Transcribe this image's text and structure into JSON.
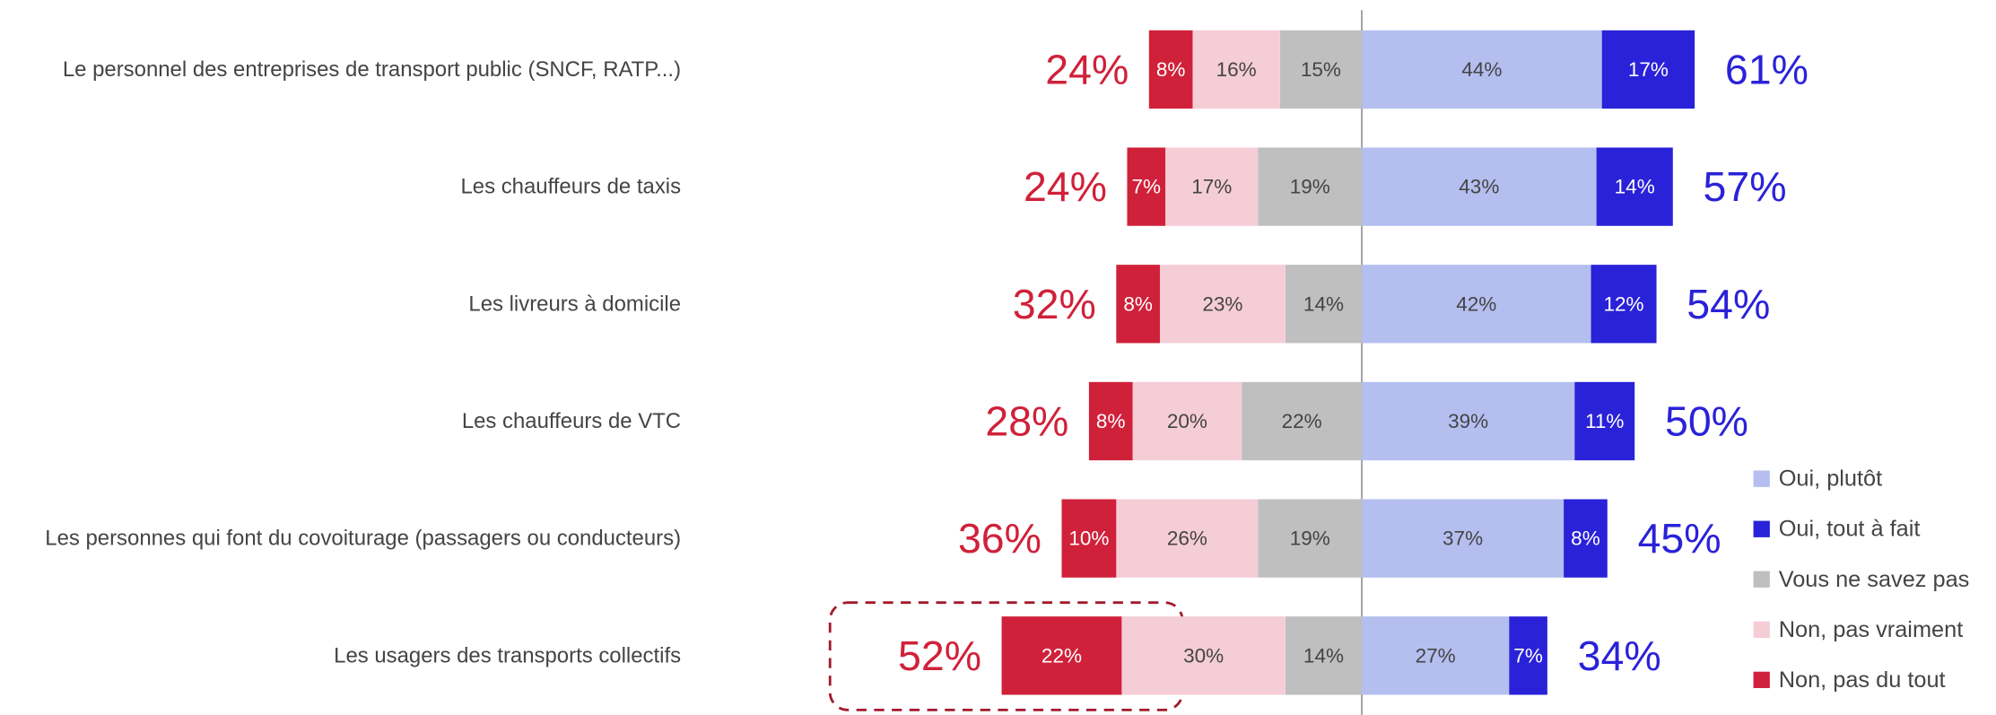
{
  "chart_data": {
    "type": "diverging-bar",
    "categories": [
      "Le personnel des entreprises de transport public (SNCF, RATP...)",
      "Les chauffeurs de taxis",
      "Les livreurs à domicile",
      "Les chauffeurs de VTC",
      "Les personnes qui font du covoiturage (passagers ou conducteurs)",
      "Les usagers des transports collectifs"
    ],
    "series": [
      {
        "name": "Oui, plutôt",
        "color": "#b4bff0",
        "side": "right",
        "values": [
          44,
          43,
          42,
          39,
          37,
          27
        ],
        "value_labels": [
          "44%",
          "43%",
          "42%",
          "39%",
          "37%",
          "27%"
        ]
      },
      {
        "name": "Oui, tout à fait",
        "color": "#2a22d8",
        "side": "right",
        "values": [
          17,
          14,
          12,
          11,
          8,
          7
        ],
        "value_labels": [
          "17%",
          "14%",
          "12%",
          "11%",
          "8%",
          "7%"
        ]
      },
      {
        "name": "Vous ne savez pas",
        "color": "#bfbfbf",
        "side": "left",
        "values": [
          15,
          19,
          14,
          22,
          19,
          14
        ],
        "value_labels": [
          "15%",
          "19%",
          "14%",
          "22%",
          "19%",
          "14%"
        ]
      },
      {
        "name": "Non, pas vraiment",
        "color": "#f5cdd6",
        "side": "left",
        "values": [
          16,
          17,
          23,
          20,
          26,
          30
        ],
        "value_labels": [
          "16%",
          "17%",
          "23%",
          "20%",
          "26%",
          "30%"
        ]
      },
      {
        "name": "Non, pas du tout",
        "color": "#d0213a",
        "side": "left",
        "values": [
          8,
          7,
          8,
          8,
          10,
          22
        ],
        "value_labels": [
          "8%",
          "7%",
          "8%",
          "8%",
          "10%",
          "22%"
        ]
      }
    ],
    "totals_no": {
      "color": "#d0213a",
      "values": [
        24,
        24,
        32,
        28,
        36,
        52
      ],
      "value_labels": [
        "24%",
        "24%",
        "32%",
        "28%",
        "36%",
        "52%"
      ]
    },
    "totals_yes": {
      "color": "#2a22d8",
      "values": [
        61,
        57,
        54,
        50,
        45,
        34
      ],
      "value_labels": [
        "61%",
        "57%",
        "54%",
        "50%",
        "45%",
        "34%"
      ]
    }
  }
}
